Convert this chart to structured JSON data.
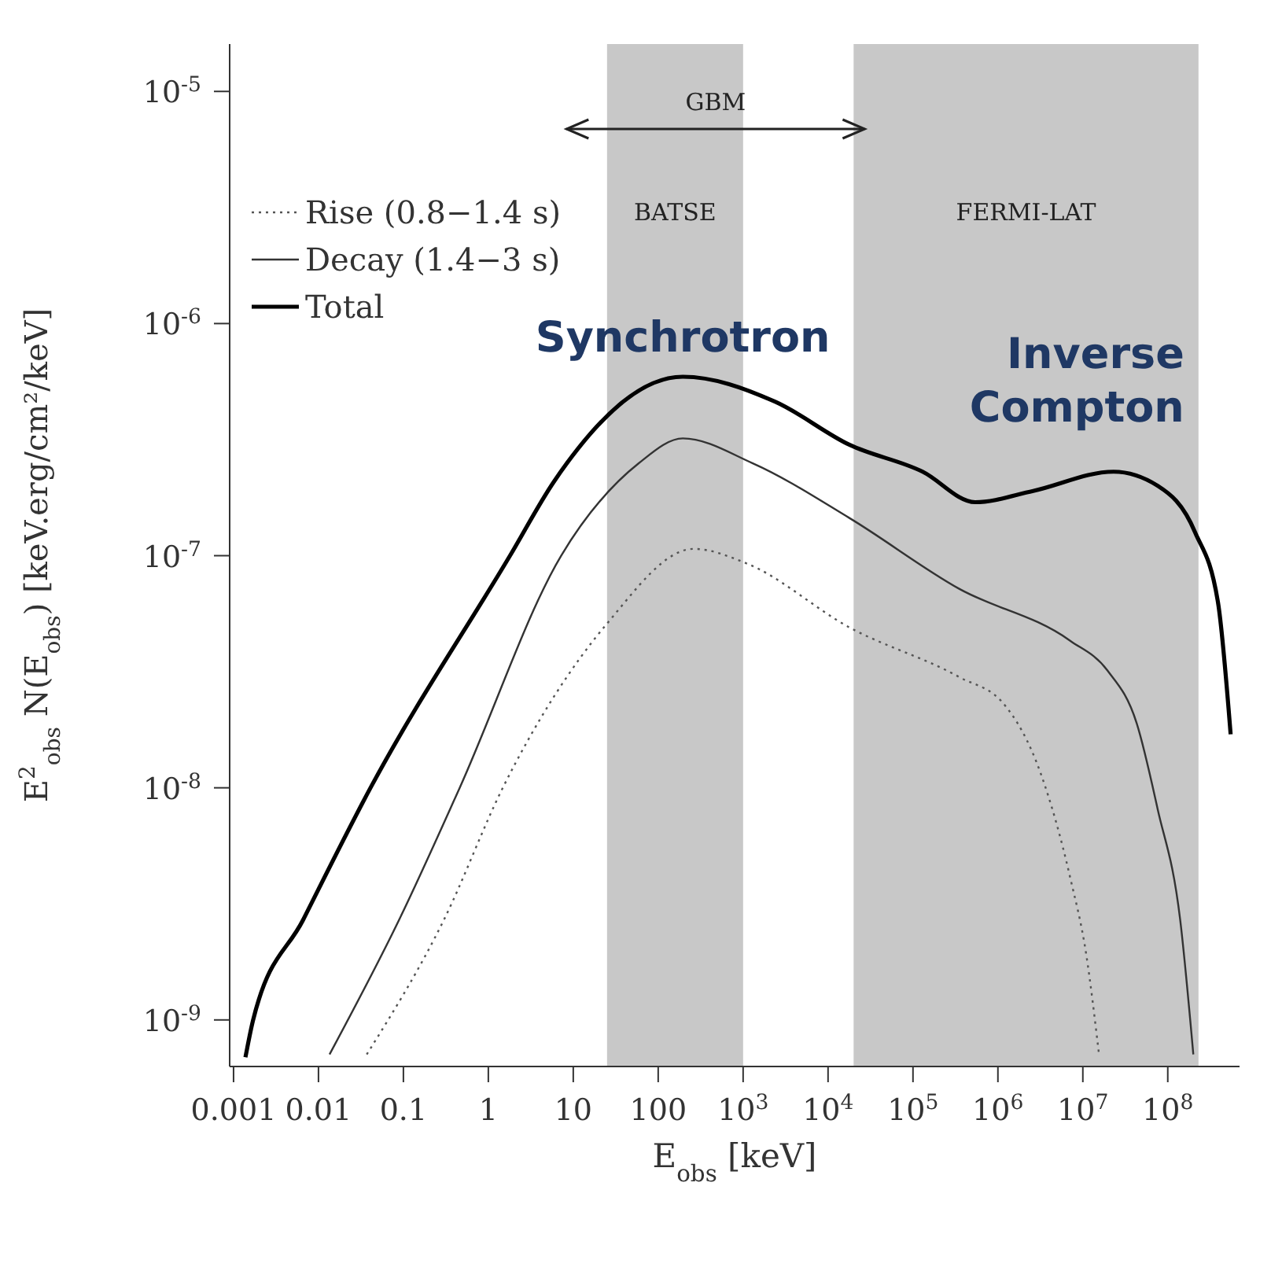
{
  "chart_data": {
    "type": "line",
    "xlabel": "E$_{obs}$ [keV]",
    "ylabel": "E$^{2}$$_{obs}$ N(E$_{obs}$) [keV.erg/cm²/keV]",
    "log": "xy",
    "xlim": [
      0.0009,
      700000000.0
    ],
    "ylim": [
      6.3e-10,
      1.6e-05
    ],
    "xticks": [
      0.001,
      0.01,
      0.1,
      1,
      10,
      100,
      {
        "value": 1000,
        "label": "10$^{3}$"
      },
      {
        "value": 10000,
        "label": "10$^{4}$"
      },
      {
        "value": 100000,
        "label": "10$^{5}$"
      },
      {
        "value": 1000000,
        "label": "10$^{6}$"
      },
      {
        "value": 10000000,
        "label": "10$^{7}$"
      },
      {
        "value": 100000000,
        "label": "10$^{8}$"
      }
    ],
    "yticks": [
      {
        "value": 1e-09,
        "label": "10$^{-9}$"
      },
      {
        "value": 1e-08,
        "label": "10$^{-8}$"
      },
      {
        "value": 1e-07,
        "label": "10$^{-7}$"
      },
      {
        "value": 1e-06,
        "label": "10$^{-6}$"
      },
      {
        "value": 1e-05,
        "label": "10$^{-5}$"
      }
    ],
    "grid": false,
    "legend": "top left",
    "bands": [
      {
        "axis": "x",
        "from": 25,
        "to": 1000,
        "label": "BATSE",
        "color": "#c8c8c8"
      },
      {
        "axis": "x",
        "from": 20000,
        "to": 230000000.0,
        "label": "FERMI-LAT",
        "color": "#c8c8c8"
      }
    ],
    "annotations": [
      "GBM",
      {
        "text": "Synchrotron",
        "x": 195,
        "y": 5.9e-07
      },
      {
        "text": "Inverse Compton",
        "x": 23000000.0,
        "y": 2.3e-07
      }
    ],
    "series": [
      {
        "name": "Rise (0.8−1.4 s)",
        "color": "#555555",
        "line_style": "dotted",
        "x": [
          0.037,
          0.3,
          1.48,
          25,
          263,
          1070,
          18000,
          350000,
          1170000,
          3200000,
          7100000,
          11000000,
          15500000
        ],
        "values": [
          7.1e-10,
          2.7e-09,
          1e-08,
          5.1e-08,
          1.07e-07,
          9.3e-08,
          4.9e-08,
          3e-08,
          2.3e-08,
          1.15e-08,
          4.1e-09,
          1.9e-09,
          7.1e-10
        ]
      },
      {
        "name": "Decay (1.4−3 s)",
        "color": "#333333",
        "line_style": "solid",
        "x": [
          0.0135,
          0.089,
          0.46,
          7.2,
          59,
          195,
          1300,
          18000,
          350000,
          7100000,
          19500000,
          43000000,
          76000000,
          140000000,
          200000000
        ],
        "values": [
          7.1e-10,
          2.7e-09,
          1e-08,
          1e-07,
          2.5e-07,
          3.2e-07,
          2.5e-07,
          1.45e-07,
          7.2e-08,
          4.3e-08,
          3.2e-08,
          1.9e-08,
          8.1e-09,
          2.7e-09,
          7.1e-10
        ]
      },
      {
        "name": "Total",
        "color": "#000000",
        "line_style": "solid",
        "x": [
          0.00138,
          0.0017,
          0.0066,
          0.041,
          1.8,
          6,
          195,
          2400,
          18000,
          130000,
          540000,
          2600000,
          23000000,
          76000000,
          210000000,
          390000000,
          550000000
        ],
        "values": [
          6.9e-10,
          1e-09,
          2.7e-09,
          1e-08,
          1e-07,
          2.1e-07,
          5.9e-07,
          4.6e-07,
          3e-07,
          2.3e-07,
          1.7e-07,
          1.9e-07,
          2.3e-07,
          2e-07,
          1.26e-07,
          6.3e-08,
          1.7e-08
        ]
      }
    ]
  }
}
